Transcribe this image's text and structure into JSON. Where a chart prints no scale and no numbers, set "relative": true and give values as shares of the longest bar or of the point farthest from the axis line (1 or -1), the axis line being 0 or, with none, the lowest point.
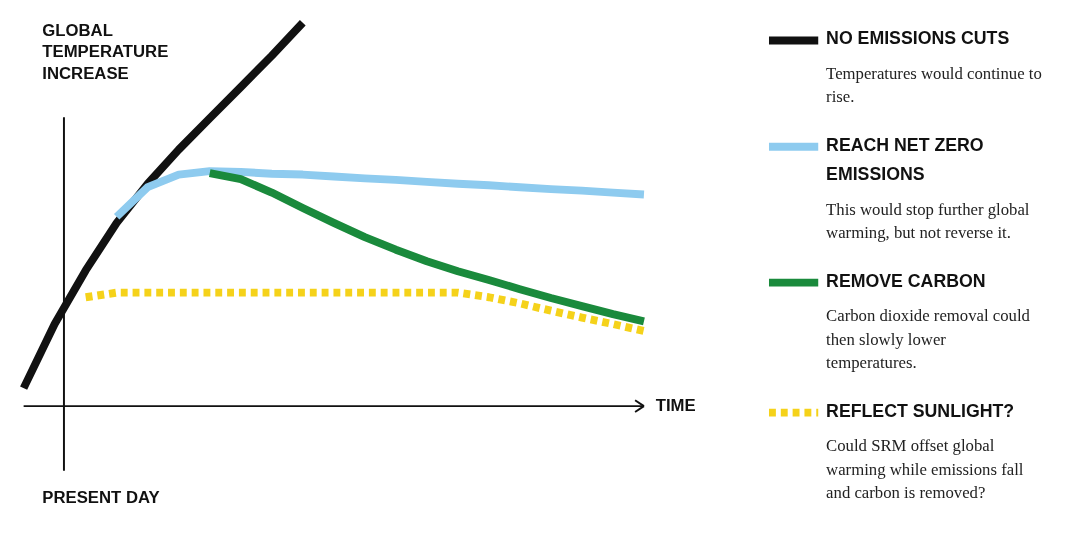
{
  "chart_data": {
    "type": "line",
    "relative": true,
    "xlabel": "TIME",
    "ylabel": "GLOBAL TEMPERATURE INCREASE",
    "legend": "right",
    "marker": "none",
    "categories": [
      null,
      null,
      null,
      null,
      null,
      null,
      null,
      null,
      null,
      null,
      null,
      null,
      null,
      null,
      null,
      null,
      null,
      null,
      null,
      null,
      null
    ],
    "series": [
      {
        "name": "NO EMISSIONS CUTS",
        "color": "#111111",
        "line_style": "solid",
        "values": [
          0.047,
          0.214,
          0.354,
          0.478,
          0.58,
          0.669,
          0.751,
          0.832,
          0.914,
          1.0,
          null,
          null,
          null,
          null,
          null,
          null,
          null,
          null,
          null,
          null,
          null
        ]
      },
      {
        "name": "REACH NET ZERO EMISSIONS",
        "color": "#8ecbef",
        "line_style": "solid",
        "values": [
          null,
          null,
          null,
          0.494,
          0.571,
          0.604,
          0.613,
          0.611,
          0.606,
          0.604,
          0.599,
          0.594,
          0.59,
          0.585,
          0.58,
          0.576,
          0.571,
          0.566,
          0.562,
          0.557,
          0.552
        ]
      },
      {
        "name": "REMOVE CARBON",
        "color": "#1a8a3c",
        "line_style": "solid",
        "values": [
          null,
          null,
          null,
          null,
          null,
          null,
          0.608,
          0.592,
          0.557,
          0.517,
          0.478,
          0.441,
          0.408,
          0.378,
          0.352,
          0.329,
          0.305,
          0.282,
          0.261,
          0.24,
          0.221
        ]
      },
      {
        "name": "REFLECT SUNLIGHT?",
        "color": "#f5d21a",
        "line_style": "dotted",
        "values": [
          null,
          null,
          0.284,
          0.296,
          0.296,
          0.296,
          0.296,
          0.296,
          0.296,
          0.296,
          0.296,
          0.296,
          0.296,
          0.296,
          0.296,
          0.284,
          0.268,
          0.249,
          0.231,
          0.214,
          0.196
        ]
      }
    ],
    "annotations": [
      "Temperatures would continue to rise.",
      "This would stop further global warming, but not reverse it.",
      "Carbon dioxide removal could then slowly lower temperatures.",
      "Could SRM offset global warming while emissions fall and carbon is removed?",
      "PRESENT DAY"
    ]
  }
}
